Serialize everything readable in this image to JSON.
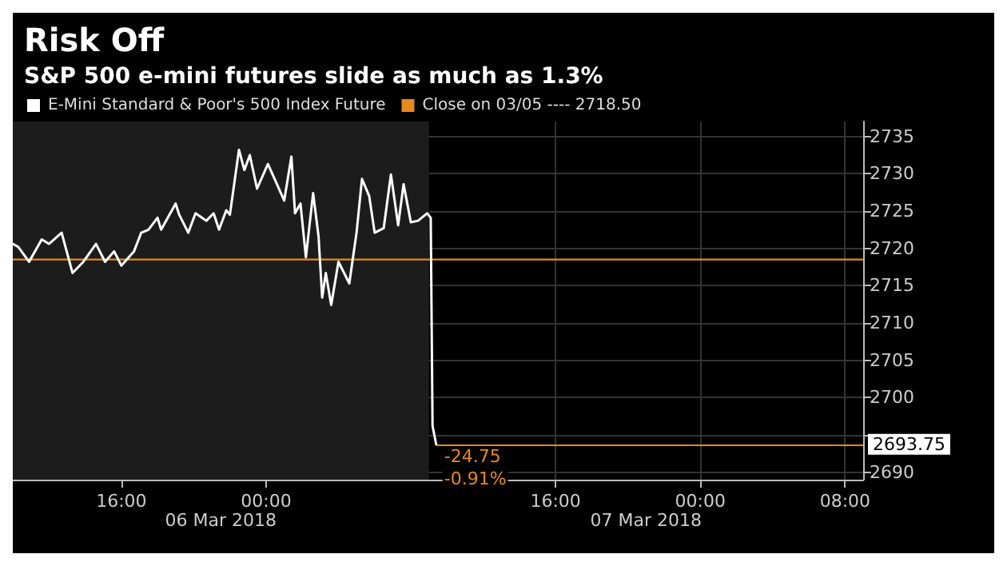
{
  "chart_data": {
    "type": "line",
    "title": "Risk Off",
    "subtitle": "S&P 500 e-mini futures slide as much as 1.3%",
    "x": [
      "2018-03-06T10:00",
      "2018-03-06T10:18",
      "2018-03-06T10:54",
      "2018-03-06T11:36",
      "2018-03-06T12:00",
      "2018-03-06T12:42",
      "2018-03-06T13:18",
      "2018-03-06T13:54",
      "2018-03-06T14:36",
      "2018-03-06T15:06",
      "2018-03-06T15:36",
      "2018-03-06T16:00",
      "2018-03-06T16:42",
      "2018-03-06T17:06",
      "2018-03-06T17:30",
      "2018-03-06T18:00",
      "2018-03-06T18:12",
      "2018-03-06T19:00",
      "2018-03-06T19:12",
      "2018-03-06T19:42",
      "2018-03-06T20:06",
      "2018-03-06T20:42",
      "2018-03-06T21:06",
      "2018-03-06T21:24",
      "2018-03-06T21:48",
      "2018-03-06T22:00",
      "2018-03-06T22:30",
      "2018-03-06T22:48",
      "2018-03-06T23:06",
      "2018-03-06T23:30",
      "2018-03-07T00:06",
      "2018-03-07T00:36",
      "2018-03-07T01:00",
      "2018-03-07T01:24",
      "2018-03-07T01:36",
      "2018-03-07T01:54",
      "2018-03-07T02:12",
      "2018-03-07T02:36",
      "2018-03-07T02:54",
      "2018-03-07T03:06",
      "2018-03-07T03:18",
      "2018-03-07T03:36",
      "2018-03-07T04:00",
      "2018-03-07T04:36",
      "2018-03-07T05:00",
      "2018-03-07T05:18",
      "2018-03-07T05:42",
      "2018-03-07T06:00",
      "2018-03-07T06:30",
      "2018-03-07T06:54",
      "2018-03-07T07:18",
      "2018-03-07T07:36",
      "2018-03-07T08:00",
      "2018-03-07T08:24",
      "2018-03-07T08:54",
      "2018-03-07T09:06",
      "2018-03-07T09:12",
      "2018-03-07T09:24"
    ],
    "series": [
      {
        "name": "E-Mini Standard & Poor's 500 Index Future",
        "color": "#ffffff",
        "values": [
          2720.6,
          2720.2,
          2718.2,
          2721.2,
          2720.6,
          2722.1,
          2716.7,
          2718.2,
          2720.6,
          2718.2,
          2719.6,
          2717.7,
          2719.6,
          2722.1,
          2722.5,
          2724.1,
          2722.5,
          2726.0,
          2724.5,
          2722.1,
          2724.7,
          2723.7,
          2724.7,
          2722.5,
          2725.1,
          2724.5,
          2733.2,
          2730.5,
          2732.5,
          2728.0,
          2731.3,
          2728.6,
          2726.4,
          2732.3,
          2724.7,
          2726.0,
          2718.8,
          2727.4,
          2721.6,
          2713.4,
          2716.7,
          2712.4,
          2718.2,
          2715.3,
          2722.1,
          2729.3,
          2727.0,
          2722.1,
          2722.7,
          2729.9,
          2723.1,
          2728.6,
          2723.5,
          2723.7,
          2724.7,
          2724.1,
          2696.2,
          2693.75
        ],
        "value_labels": [
          null,
          null,
          null,
          null,
          null,
          null,
          null,
          null,
          null,
          null,
          null,
          null,
          null,
          null,
          null,
          null,
          null,
          null,
          null,
          null,
          null,
          null,
          null,
          null,
          null,
          null,
          null,
          null,
          null,
          null,
          null,
          null,
          null,
          null,
          null,
          null,
          null,
          null,
          null,
          null,
          null,
          null,
          null,
          null,
          null,
          null,
          null,
          null,
          null,
          null,
          null,
          null,
          null,
          null,
          null,
          null,
          null,
          "2693.75"
        ]
      }
    ],
    "xlim": [
      "2018-03-06T10:00",
      "2018-03-08T09:00"
    ],
    "xticks": [
      {
        "value": "2018-03-06T16:00",
        "label": "16:00"
      },
      {
        "value": "2018-03-07T00:00",
        "label": "00:00"
      },
      {
        "value": "2018-03-07T16:00",
        "label": "16:00"
      },
      {
        "value": "2018-03-08T00:00",
        "label": "00:00"
      },
      {
        "value": "2018-03-08T08:00",
        "label": "08:00"
      }
    ],
    "ylim": [
      2689,
      2737
    ],
    "yticks": [
      2690,
      {
        "value": 2695,
        "label": null
      },
      2700,
      2705,
      2710,
      2715,
      2720,
      2725,
      2730,
      2735
    ],
    "ref_lines": [
      {
        "axis": "y",
        "value": 2718.5,
        "label": "Close on 03/05 ---- 2718.50",
        "color": "#e8891c"
      }
    ],
    "bands": [
      {
        "axis": "x",
        "from": "2018-03-06T10:00",
        "to": "2018-03-07T09:00",
        "color": "#1c1c1c"
      }
    ],
    "annotations": [
      {
        "text": "-24.75",
        "x": "2018-03-07T09:24",
        "y": 2693.75
      },
      {
        "text": "-0.91%",
        "x": "2018-03-07T09:24",
        "y": 2693.75
      },
      "06 Mar 2018",
      "07 Mar 2018"
    ],
    "grid": true,
    "legend": "top left"
  }
}
